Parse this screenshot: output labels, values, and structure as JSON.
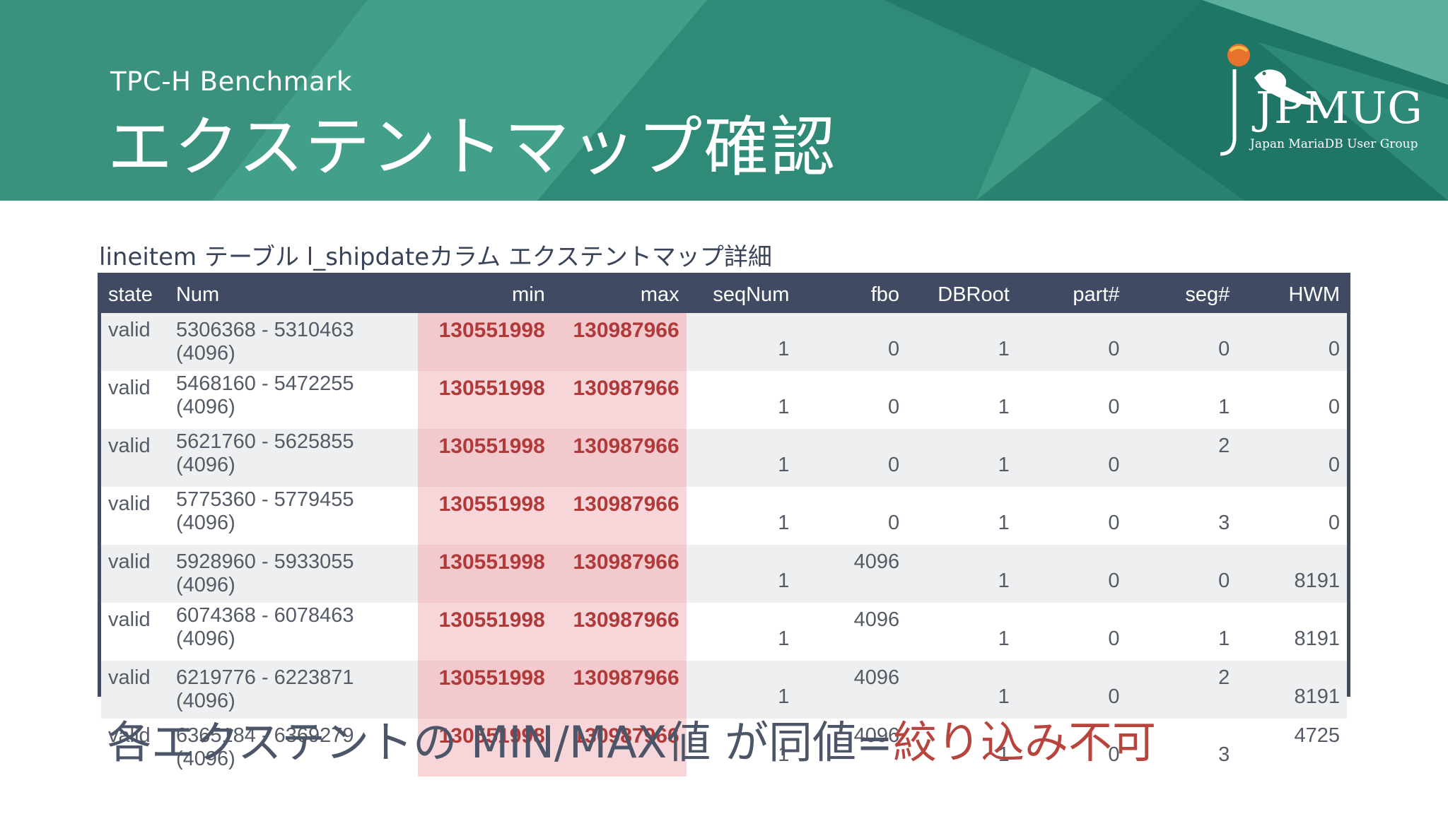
{
  "header": {
    "supertitle": "TPC-H Benchmark",
    "title": "エクステントマップ確認",
    "logo_text": "JPMUG",
    "logo_subtitle": "Japan MariaDB User Group"
  },
  "caption": "lineitem テーブル l_shipdateカラム エクステントマップ詳細",
  "table": {
    "headers": [
      "state",
      "Num",
      "min",
      "max",
      "seqNum",
      "fbo",
      "DBRoot",
      "part#",
      "seg#",
      "HWM"
    ],
    "rows": [
      {
        "state": "valid",
        "num": "5306368 - 5310463 (4096)",
        "min": "130551998",
        "max": "130987966",
        "seqNum": "1",
        "fbo": "0",
        "dbroot": "1",
        "part": "0",
        "seg": "0",
        "hwm": "0"
      },
      {
        "state": "valid",
        "num": "5468160  -  5472255  (4096)",
        "min": "130551998",
        "max": "130987966",
        "seqNum": "1",
        "fbo": "0",
        "dbroot": "1",
        "part": "0",
        "seg": "1",
        "hwm": "0"
      },
      {
        "state": "valid",
        "num": "5621760  -  5625855  (4096)",
        "min": "130551998",
        "max": "130987966",
        "seqNum": "1",
        "fbo": "0",
        "dbroot": "1",
        "part": "0",
        "seg": "2",
        "hwm": "0"
      },
      {
        "state": "valid",
        "num": "5775360  -  5779455  (4096)",
        "min": "130551998",
        "max": "130987966",
        "seqNum": "1",
        "fbo": "0",
        "dbroot": "1",
        "part": "0",
        "seg": "3",
        "hwm": "0"
      },
      {
        "state": "valid",
        "num": "5928960 - 5933055 (4096)",
        "min": "130551998",
        "max": "130987966",
        "seqNum": "1",
        "fbo": "4096",
        "dbroot": "1",
        "part": "0",
        "seg": "0",
        "hwm": "8191"
      },
      {
        "state": "valid",
        "num": "6074368  -  6078463  (4096)",
        "min": "130551998",
        "max": "130987966",
        "seqNum": "1",
        "fbo": "4096",
        "dbroot": "1",
        "part": "0",
        "seg": "1",
        "hwm": "8191"
      },
      {
        "state": "valid",
        "num": "6219776 - 6223871 (4096)",
        "min": "130551998",
        "max": "130987966",
        "seqNum": "1",
        "fbo": "4096",
        "dbroot": "1",
        "part": "0",
        "seg": "2",
        "hwm": "8191"
      },
      {
        "state": "valid",
        "num": "6365184 - 6369279 (4096)",
        "min": "130551998",
        "max": "130987966",
        "seqNum": "1",
        "fbo": "4096",
        "dbroot": "1",
        "part": "0",
        "seg": "3",
        "hwm": "4725"
      }
    ]
  },
  "footer": {
    "text": "各エクステントの MIN/MAX値 が同値=",
    "highlight": "絞り込み不可"
  },
  "colors": {
    "banner": "#3f9a85",
    "header_row": "#414a63",
    "highlight_text": "#b03a3a",
    "highlight_bg": "#f2c9cd",
    "footer_red": "#b8443e"
  }
}
